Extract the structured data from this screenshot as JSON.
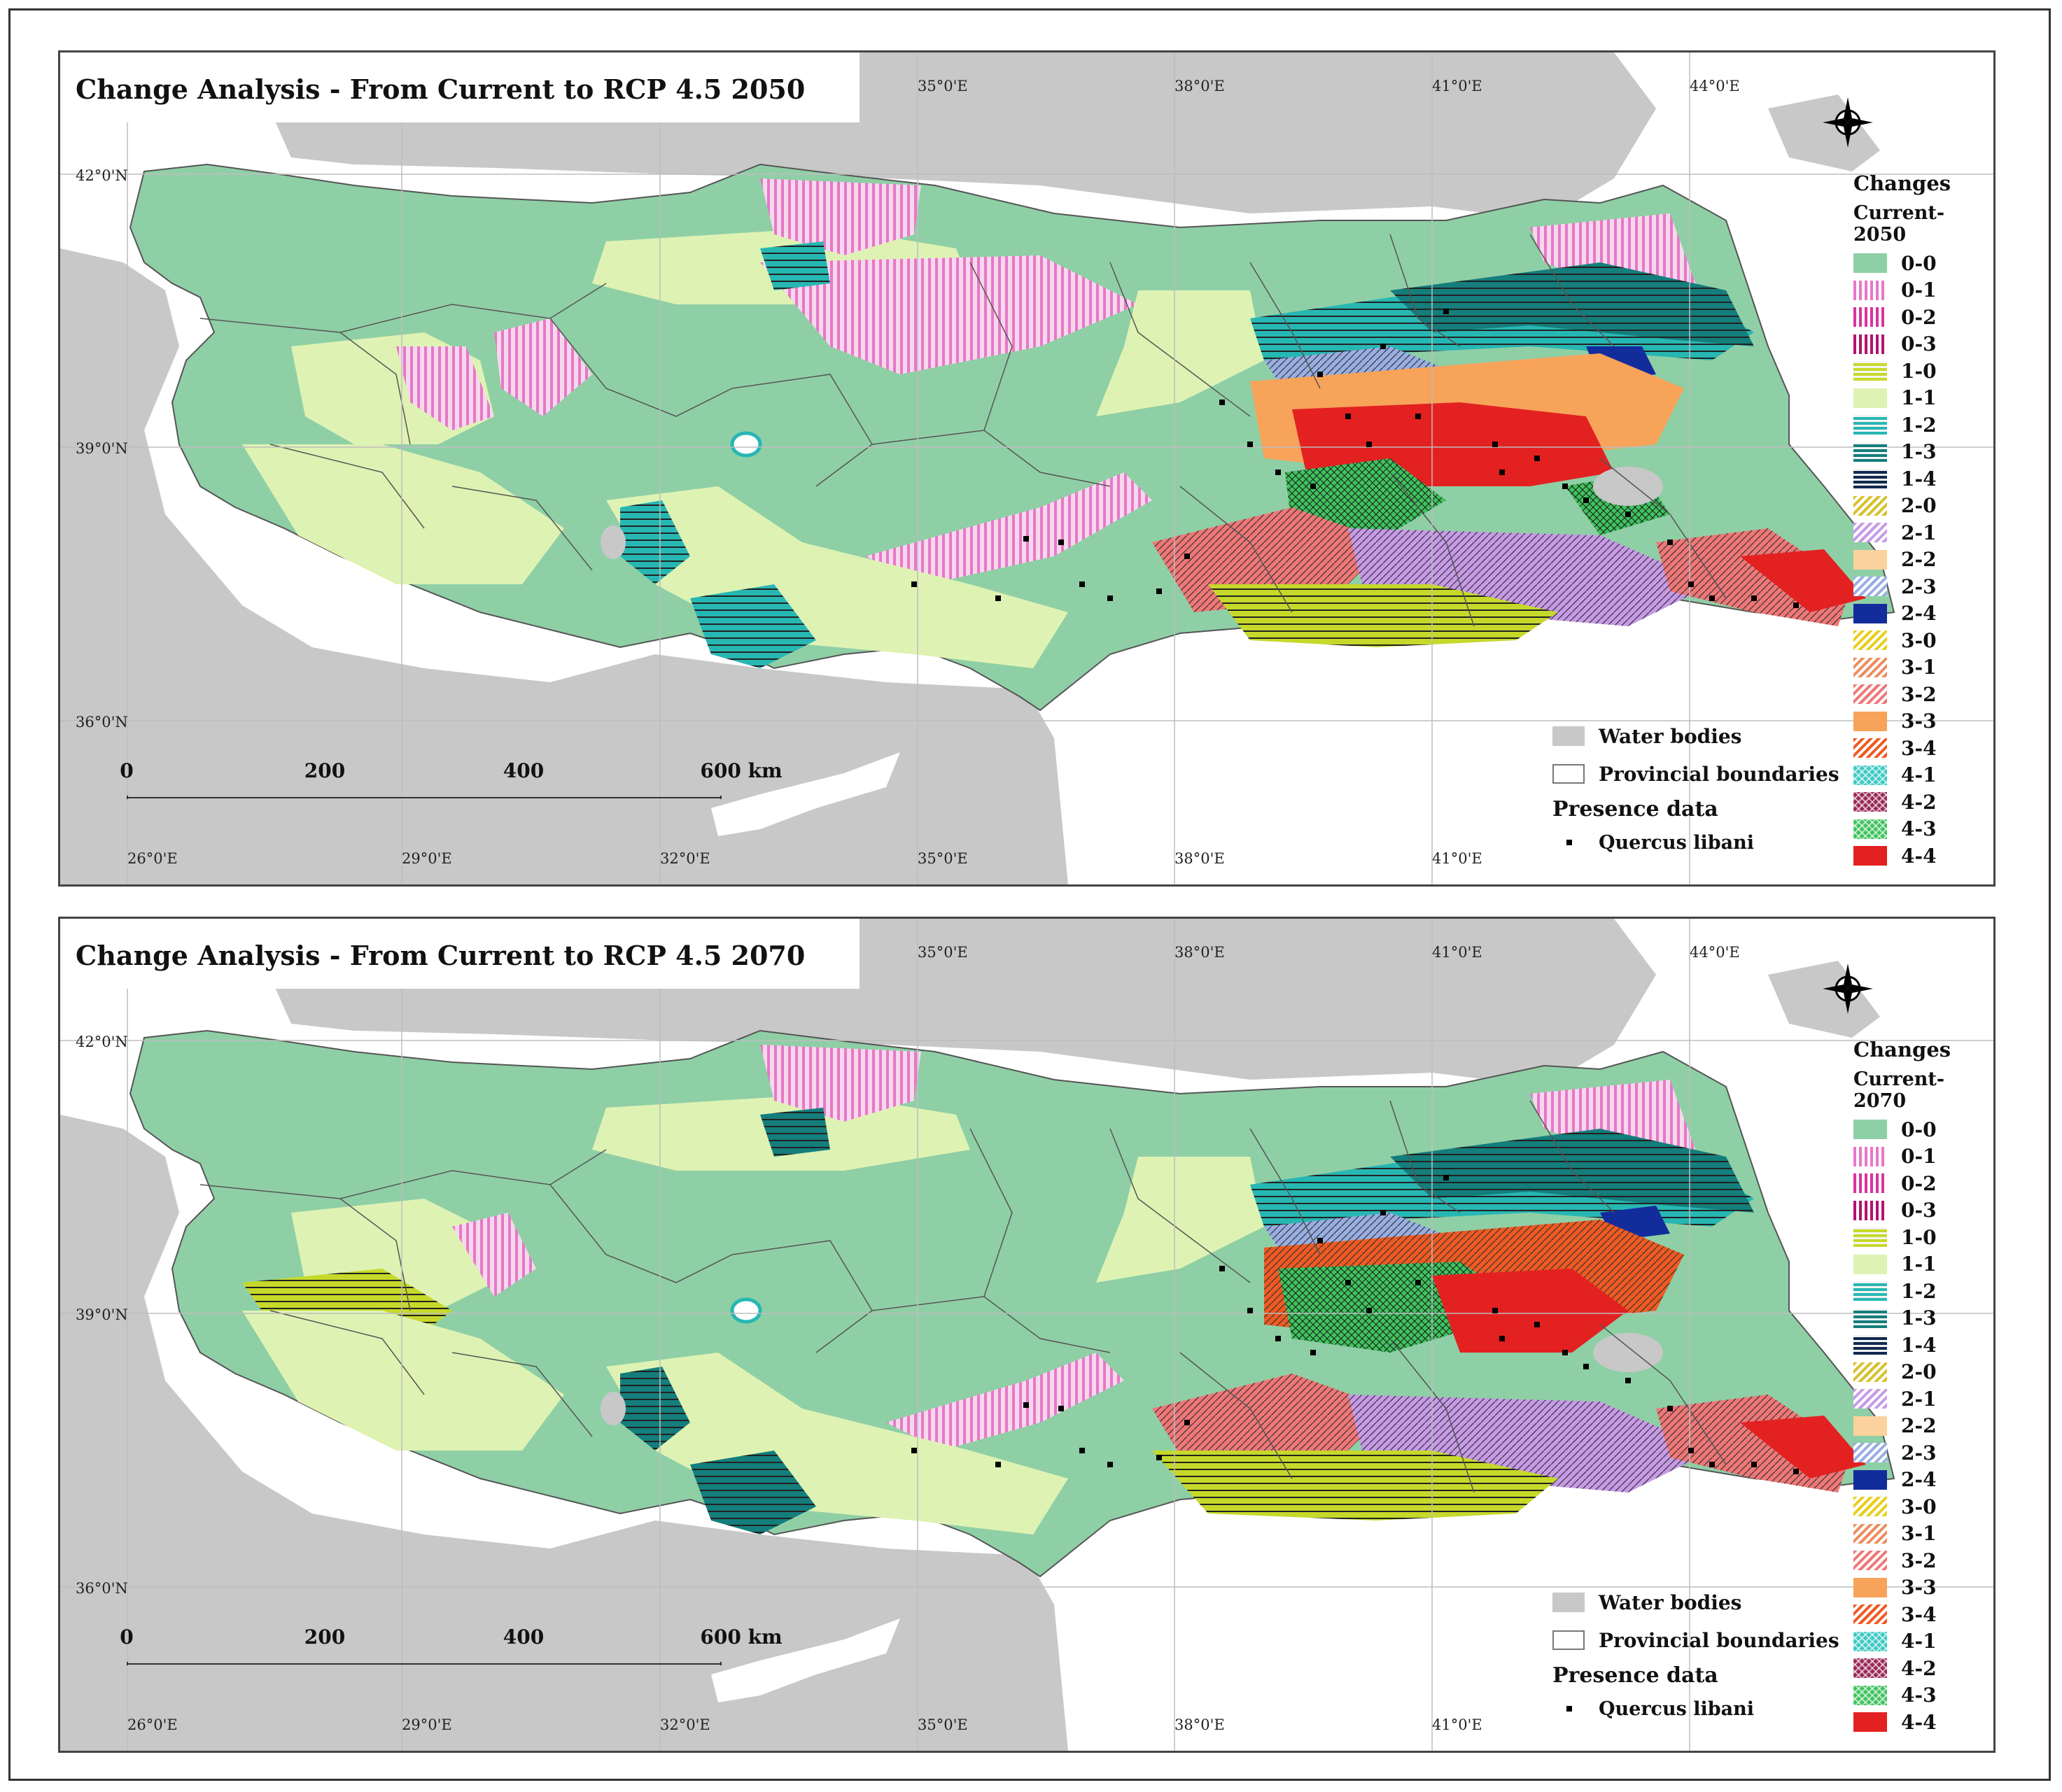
{
  "panels": [
    {
      "title": "Change Analysis - From Current to RCP 4.5 2050",
      "legend_head": "Changes",
      "legend_sub": "Current-2050"
    },
    {
      "title": "Change Analysis - From Current to RCP 4.5 2070",
      "legend_head": "Changes",
      "legend_sub": "Current-2070"
    }
  ],
  "legend_items": [
    {
      "label": "0-0",
      "color": "#8fcfa6",
      "pattern": "solid"
    },
    {
      "label": "0-1",
      "color": "#e877c8",
      "pattern": "vlines"
    },
    {
      "label": "0-2",
      "color": "#d9339e",
      "pattern": "vlines"
    },
    {
      "label": "0-3",
      "color": "#b3126f",
      "pattern": "vlines"
    },
    {
      "label": "1-0",
      "color": "#c6d92a",
      "pattern": "hlines"
    },
    {
      "label": "1-1",
      "color": "#def3b3",
      "pattern": "solid"
    },
    {
      "label": "1-2",
      "color": "#27b7b3",
      "pattern": "hlines"
    },
    {
      "label": "1-3",
      "color": "#147e7c",
      "pattern": "hlines"
    },
    {
      "label": "1-4",
      "color": "#102a4f",
      "pattern": "hlines"
    },
    {
      "label": "2-0",
      "color": "#d7c12d",
      "pattern": "diag"
    },
    {
      "label": "2-1",
      "color": "#c79ae7",
      "pattern": "diag"
    },
    {
      "label": "2-2",
      "color": "#fbd29e",
      "pattern": "solid"
    },
    {
      "label": "2-3",
      "color": "#98aee3",
      "pattern": "diag"
    },
    {
      "label": "2-4",
      "color": "#132c9c",
      "pattern": "solid"
    },
    {
      "label": "3-0",
      "color": "#e8cf1c",
      "pattern": "diag"
    },
    {
      "label": "3-1",
      "color": "#ec8d5f",
      "pattern": "diag"
    },
    {
      "label": "3-2",
      "color": "#f07777",
      "pattern": "diag"
    },
    {
      "label": "3-3",
      "color": "#f7a35a",
      "pattern": "solid"
    },
    {
      "label": "3-4",
      "color": "#ef5a22",
      "pattern": "diag"
    },
    {
      "label": "4-1",
      "color": "#3cc9c4",
      "pattern": "cross"
    },
    {
      "label": "4-2",
      "color": "#9a2856",
      "pattern": "cross"
    },
    {
      "label": "4-3",
      "color": "#3fc35e",
      "pattern": "cross"
    },
    {
      "label": "4-4",
      "color": "#e32121",
      "pattern": "solid"
    }
  ],
  "other_legend": {
    "water": "Water bodies",
    "boundaries": "Provincial boundaries",
    "presence_heading": "Presence data",
    "species": "Quercus libani"
  },
  "axes": {
    "lon_labels": [
      "26°0'E",
      "29°0'E",
      "32°0'E",
      "35°0'E",
      "38°0'E",
      "41°0'E",
      "44°0'E"
    ],
    "lat_labels": [
      "42°0'N",
      "39°0'N",
      "36°0'N"
    ]
  },
  "scale": {
    "ticks": [
      "0",
      "200",
      "400",
      "600 km"
    ]
  },
  "colors": {
    "water": "#c8c8c8",
    "land_outside": "#ffffff",
    "base_land": "#8fcfa6"
  }
}
